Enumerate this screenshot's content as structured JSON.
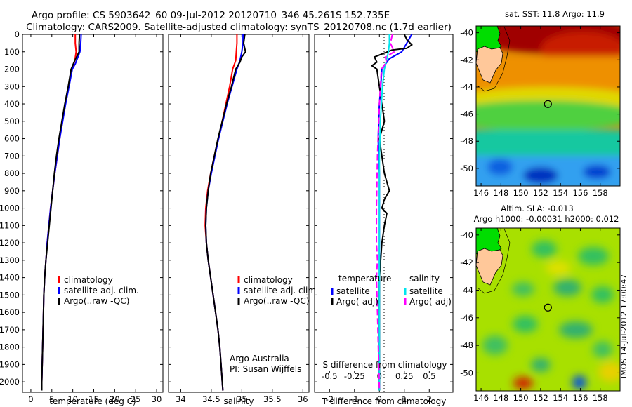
{
  "header": {
    "line1": "Argo profile: CS 5903642_60 09-Jul-2012 20120710_346 45.261S 152.735E",
    "line2": "Climatology: CARS2009. Satellite-adjusted climatology: synTS_20120708.nc (1.7d earlier)"
  },
  "colors": {
    "climatology": "#ff0000",
    "satellite": "#0000ff",
    "argo": "#000000",
    "salinity_satellite": "#00e5ee",
    "salinity_argo": "#ff00ff",
    "land": "#ffc89a"
  },
  "depth_axis": {
    "ticks": [
      0,
      100,
      200,
      300,
      400,
      500,
      600,
      700,
      800,
      900,
      1000,
      1100,
      1200,
      1300,
      1400,
      1500,
      1600,
      1700,
      1800,
      1900,
      2000
    ],
    "range": [
      0,
      2060
    ]
  },
  "chart_data": [
    {
      "type": "line",
      "id": "temperature",
      "xlabel": "temperature (deg C)",
      "xticks": [
        0,
        5,
        10,
        15,
        20,
        25,
        30
      ],
      "xlim": [
        -2,
        31.5
      ],
      "legend": [
        "climatology",
        "satellite-adj. clim.",
        "Argo(..raw -QC)"
      ],
      "series": [
        {
          "name": "climatology",
          "color_key": "climatology",
          "points": [
            [
              10.6,
              0
            ],
            [
              10.6,
              50
            ],
            [
              10.8,
              100
            ],
            [
              10.5,
              150
            ],
            [
              9.8,
              200
            ],
            [
              9.0,
              300
            ],
            [
              8.2,
              400
            ],
            [
              7.5,
              500
            ],
            [
              6.9,
              600
            ],
            [
              6.3,
              700
            ],
            [
              5.7,
              800
            ],
            [
              5.2,
              900
            ],
            [
              4.7,
              1000
            ],
            [
              4.3,
              1100
            ],
            [
              3.9,
              1200
            ],
            [
              3.6,
              1300
            ],
            [
              3.3,
              1400
            ],
            [
              3.1,
              1500
            ],
            [
              3.0,
              1600
            ],
            [
              2.9,
              1700
            ],
            [
              2.8,
              1800
            ],
            [
              2.7,
              1900
            ],
            [
              2.6,
              2000
            ],
            [
              2.6,
              2050
            ]
          ]
        },
        {
          "name": "satellite-adj. clim.",
          "color_key": "satellite",
          "points": [
            [
              12.0,
              0
            ],
            [
              11.9,
              50
            ],
            [
              11.7,
              100
            ],
            [
              10.6,
              170
            ],
            [
              9.9,
              200
            ],
            [
              9.1,
              300
            ],
            [
              8.3,
              400
            ],
            [
              7.6,
              500
            ],
            [
              6.9,
              600
            ],
            [
              6.3,
              700
            ],
            [
              5.7,
              800
            ],
            [
              5.2,
              900
            ],
            [
              4.7,
              1000
            ],
            [
              4.3,
              1100
            ],
            [
              3.9,
              1200
            ],
            [
              3.6,
              1300
            ],
            [
              3.3,
              1400
            ],
            [
              3.1,
              1500
            ],
            [
              3.0,
              1600
            ],
            [
              2.9,
              1700
            ],
            [
              2.8,
              1800
            ],
            [
              2.7,
              1900
            ],
            [
              2.6,
              2000
            ],
            [
              2.6,
              2050
            ]
          ]
        },
        {
          "name": "Argo(..raw -QC)",
          "color_key": "argo",
          "points": [
            [
              11.6,
              0
            ],
            [
              11.5,
              50
            ],
            [
              11.5,
              100
            ],
            [
              10.3,
              160
            ],
            [
              9.6,
              200
            ],
            [
              8.9,
              300
            ],
            [
              8.1,
              400
            ],
            [
              7.4,
              500
            ],
            [
              6.7,
              600
            ],
            [
              6.1,
              700
            ],
            [
              5.6,
              800
            ],
            [
              5.2,
              900
            ],
            [
              4.8,
              1000
            ],
            [
              4.4,
              1100
            ],
            [
              4.0,
              1200
            ],
            [
              3.6,
              1300
            ],
            [
              3.3,
              1400
            ],
            [
              3.1,
              1500
            ],
            [
              3.0,
              1600
            ],
            [
              2.9,
              1700
            ],
            [
              2.8,
              1800
            ],
            [
              2.7,
              1900
            ],
            [
              2.6,
              2000
            ],
            [
              2.6,
              2050
            ]
          ]
        }
      ]
    },
    {
      "type": "line",
      "id": "salinity",
      "xlabel": "salinity",
      "xticks": [
        34,
        34.5,
        35,
        35.5,
        36
      ],
      "xlim": [
        33.8,
        36.1
      ],
      "legend": [
        "climatology",
        "satellite-adj. clim.",
        "Argo(..raw -QC)"
      ],
      "annotation": [
        "Argo Australia",
        "PI: Susan Wijffels"
      ],
      "series": [
        {
          "name": "climatology",
          "color_key": "climatology",
          "points": [
            [
              34.92,
              0
            ],
            [
              34.92,
              50
            ],
            [
              34.91,
              100
            ],
            [
              34.9,
              150
            ],
            [
              34.85,
              200
            ],
            [
              34.8,
              300
            ],
            [
              34.74,
              400
            ],
            [
              34.68,
              500
            ],
            [
              34.62,
              600
            ],
            [
              34.55,
              700
            ],
            [
              34.49,
              800
            ],
            [
              34.44,
              900
            ],
            [
              34.41,
              1000
            ],
            [
              34.4,
              1100
            ],
            [
              34.42,
              1200
            ],
            [
              34.45,
              1300
            ],
            [
              34.49,
              1400
            ],
            [
              34.53,
              1500
            ],
            [
              34.57,
              1600
            ],
            [
              34.61,
              1700
            ],
            [
              34.64,
              1800
            ],
            [
              34.66,
              1900
            ],
            [
              34.68,
              2000
            ],
            [
              34.69,
              2050
            ]
          ]
        },
        {
          "name": "satellite-adj. clim.",
          "color_key": "satellite",
          "points": [
            [
              35.02,
              0
            ],
            [
              35.02,
              50
            ],
            [
              35.0,
              100
            ],
            [
              34.97,
              150
            ],
            [
              34.92,
              200
            ],
            [
              34.84,
              300
            ],
            [
              34.76,
              400
            ],
            [
              34.69,
              500
            ],
            [
              34.62,
              600
            ],
            [
              34.56,
              700
            ],
            [
              34.5,
              800
            ],
            [
              34.45,
              900
            ],
            [
              34.42,
              1000
            ],
            [
              34.41,
              1100
            ],
            [
              34.42,
              1200
            ],
            [
              34.45,
              1300
            ],
            [
              34.49,
              1400
            ],
            [
              34.53,
              1500
            ],
            [
              34.57,
              1600
            ],
            [
              34.61,
              1700
            ],
            [
              34.64,
              1800
            ],
            [
              34.66,
              1900
            ],
            [
              34.68,
              2000
            ],
            [
              34.69,
              2050
            ]
          ]
        },
        {
          "name": "Argo(..raw -QC)",
          "color_key": "argo",
          "points": [
            [
              35.05,
              0
            ],
            [
              35.03,
              50
            ],
            [
              35.06,
              100
            ],
            [
              35.0,
              130
            ],
            [
              34.97,
              160
            ],
            [
              34.9,
              200
            ],
            [
              34.83,
              300
            ],
            [
              34.75,
              400
            ],
            [
              34.68,
              500
            ],
            [
              34.61,
              600
            ],
            [
              34.55,
              700
            ],
            [
              34.49,
              800
            ],
            [
              34.45,
              900
            ],
            [
              34.42,
              1000
            ],
            [
              34.41,
              1100
            ],
            [
              34.42,
              1200
            ],
            [
              34.45,
              1300
            ],
            [
              34.49,
              1400
            ],
            [
              34.53,
              1500
            ],
            [
              34.57,
              1600
            ],
            [
              34.61,
              1700
            ],
            [
              34.64,
              1800
            ],
            [
              34.66,
              1900
            ],
            [
              34.68,
              2000
            ],
            [
              34.69,
              2050
            ]
          ]
        }
      ]
    },
    {
      "type": "line",
      "id": "difference",
      "xlabel": "T difference from climatology",
      "top_xlabel": "S difference from climatology",
      "xticks": [
        -2,
        -1,
        0,
        1,
        2
      ],
      "xlim": [
        -2.6,
        2.95
      ],
      "sticks": [
        -0.5,
        -0.25,
        0,
        0.25,
        0.5
      ],
      "stick_labels": [
        "-0.5",
        "-0.25",
        "0",
        "0.25",
        "0.5"
      ],
      "slim": [
        -0.65,
        0.737
      ],
      "legend_groups": [
        {
          "title": "temperature",
          "items": [
            "satellite",
            "Argo(-adj)"
          ],
          "color_keys": [
            "satellite",
            "argo"
          ]
        },
        {
          "title": "salinity",
          "items": [
            "satellite",
            "Argo(-adj)"
          ],
          "color_keys": [
            "salinity_satellite",
            "salinity_argo"
          ]
        }
      ],
      "series": [
        {
          "name": "T satellite",
          "color_key": "satellite",
          "points": [
            [
              1.3,
              0
            ],
            [
              1.1,
              50
            ],
            [
              0.9,
              100
            ],
            [
              0.4,
              140
            ],
            [
              0.1,
              200
            ],
            [
              0.05,
              300
            ],
            [
              0.0,
              400
            ],
            [
              -0.05,
              600
            ],
            [
              0.0,
              800
            ],
            [
              0.0,
              1000
            ],
            [
              0.0,
              1200
            ],
            [
              0.0,
              1500
            ],
            [
              0.0,
              2050
            ]
          ]
        },
        {
          "name": "T Argo(-adj)",
          "color_key": "argo",
          "points": [
            [
              1.0,
              0
            ],
            [
              1.1,
              30
            ],
            [
              1.3,
              60
            ],
            [
              1.1,
              80
            ],
            [
              0.5,
              90
            ],
            [
              -0.2,
              130
            ],
            [
              -0.1,
              160
            ],
            [
              -0.3,
              180
            ],
            [
              -0.1,
              200
            ],
            [
              0.0,
              300
            ],
            [
              0.1,
              400
            ],
            [
              0.2,
              500
            ],
            [
              0.0,
              600
            ],
            [
              0.1,
              700
            ],
            [
              0.2,
              800
            ],
            [
              0.3,
              850
            ],
            [
              0.4,
              900
            ],
            [
              0.2,
              950
            ],
            [
              0.1,
              1000
            ],
            [
              0.3,
              1030
            ],
            [
              0.2,
              1100
            ],
            [
              0.1,
              1200
            ],
            [
              0.0,
              1400
            ],
            [
              0.0,
              1600
            ],
            [
              0.0,
              1800
            ],
            [
              0.0,
              2050
            ]
          ]
        },
        {
          "name": "S satellite",
          "color_key": "salinity_satellite",
          "points": [
            [
              0.1,
              0
            ],
            [
              0.1,
              50
            ],
            [
              0.09,
              100
            ],
            [
              0.07,
              150
            ],
            [
              0.05,
              200
            ],
            [
              0.03,
              300
            ],
            [
              0.01,
              500
            ],
            [
              0.0,
              700
            ],
            [
              0.0,
              1000
            ],
            [
              0.0,
              2050
            ]
          ]
        },
        {
          "name": "S Argo(-adj)",
          "color_key": "salinity_argo",
          "points": [
            [
              0.13,
              0
            ],
            [
              0.11,
              50
            ],
            [
              0.15,
              100
            ],
            [
              0.06,
              130
            ],
            [
              0.07,
              160
            ],
            [
              0.02,
              200
            ],
            [
              0.0,
              400
            ],
            [
              -0.02,
              700
            ],
            [
              -0.03,
              1000
            ],
            [
              -0.03,
              1200
            ],
            [
              -0.02,
              1300
            ],
            [
              -0.03,
              1400
            ],
            [
              -0.02,
              1600
            ],
            [
              0.0,
              2050
            ]
          ]
        }
      ]
    },
    {
      "type": "heatmap",
      "id": "sst_map",
      "title": "sat. SST: 11.8 Argo: 11.9",
      "xticks": [
        146,
        148,
        150,
        152,
        154,
        156,
        158
      ],
      "yticks": [
        -40,
        -42,
        -44,
        -46,
        -48,
        -50
      ],
      "xlim": [
        145.5,
        160
      ],
      "ylim": [
        -51.3,
        -39.5
      ],
      "marker": [
        152.735,
        -45.261
      ]
    },
    {
      "type": "heatmap",
      "id": "sla_map",
      "title": "Altim. SLA: -0.013",
      "subtitle": "Argo h1000: -0.00031 h2000: 0.012",
      "xticks": [
        146,
        148,
        150,
        152,
        154,
        156,
        158
      ],
      "yticks": [
        -40,
        -42,
        -44,
        -46,
        -48,
        -50
      ],
      "xlim": [
        145.5,
        160
      ],
      "ylim": [
        -51.3,
        -39.5
      ],
      "marker": [
        152.735,
        -45.261
      ]
    }
  ],
  "watermark": "IMOS 14-Jul-2012 17:00:47"
}
